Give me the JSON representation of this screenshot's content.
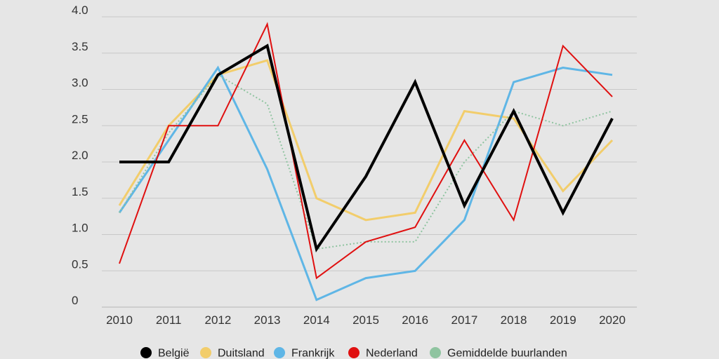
{
  "chart_data": {
    "type": "line",
    "title": "",
    "xlabel": "",
    "ylabel": "",
    "x": [
      2010,
      2011,
      2012,
      2013,
      2014,
      2015,
      2016,
      2017,
      2018,
      2019,
      2020
    ],
    "x_tick_labels": [
      "2010",
      "2011",
      "2012",
      "2013",
      "2014",
      "2015",
      "2016",
      "2017",
      "2018",
      "2019",
      "2020"
    ],
    "ylim": [
      0,
      4
    ],
    "y_ticks": [
      0,
      0.5,
      1,
      1.5,
      2,
      2.5,
      3,
      3.5,
      4
    ],
    "y_tick_labels": [
      "0",
      "0.5",
      "1.0",
      "1.5",
      "2.0",
      "2.5",
      "3.0",
      "3.5",
      "4.0"
    ],
    "grid": "horizontal",
    "legend_position": "bottom",
    "series": [
      {
        "name": "Duitsland",
        "color": "#f2cd6b",
        "style": "solid",
        "width": "medium",
        "values": [
          1.4,
          2.5,
          3.2,
          3.4,
          1.5,
          1.2,
          1.3,
          2.7,
          2.6,
          1.6,
          2.3
        ]
      },
      {
        "name": "Frankrijk",
        "color": "#5fb6e6",
        "style": "solid",
        "width": "medium",
        "values": [
          1.3,
          2.3,
          3.3,
          1.9,
          0.1,
          0.4,
          0.5,
          1.2,
          3.1,
          3.3,
          3.2
        ]
      },
      {
        "name": "Gemiddelde buurlanden",
        "color": "#8fc4a0",
        "style": "dotted",
        "width": "thin",
        "values": [
          1.3,
          2.4,
          3.2,
          2.8,
          0.8,
          0.9,
          0.9,
          2.0,
          2.7,
          2.5,
          2.7
        ]
      },
      {
        "name": "Nederland",
        "color": "#e01010",
        "style": "solid",
        "width": "thin",
        "values": [
          0.6,
          2.5,
          2.5,
          3.9,
          0.4,
          0.9,
          1.1,
          2.3,
          1.2,
          3.6,
          2.9
        ]
      },
      {
        "name": "België",
        "color": "#000000",
        "style": "solid",
        "width": "thick",
        "values": [
          2.0,
          2.0,
          3.2,
          3.6,
          0.8,
          1.8,
          3.1,
          1.4,
          2.7,
          1.3,
          2.6
        ]
      }
    ],
    "legend_order": [
      "België",
      "Duitsland",
      "Frankrijk",
      "Nederland",
      "Gemiddelde buurlanden"
    ]
  }
}
